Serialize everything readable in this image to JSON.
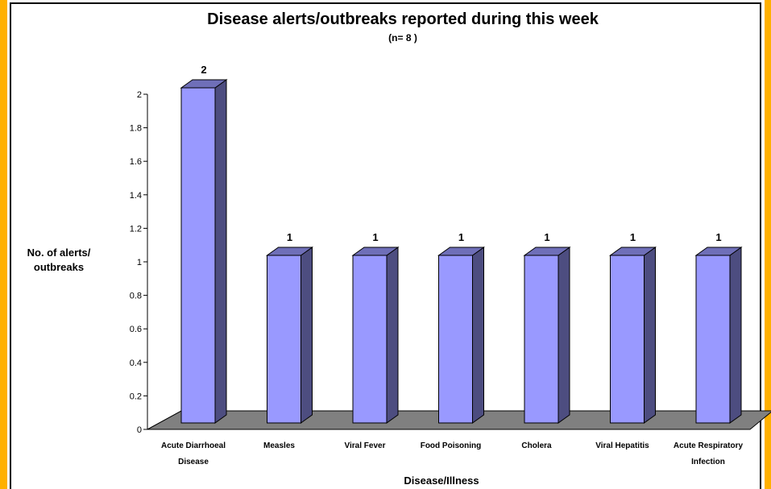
{
  "chart_data": {
    "type": "bar",
    "title": "Disease alerts/outbreaks reported during this week",
    "subtitle": "(n= 8 )",
    "xlabel": "Disease/Illness",
    "ylabel_lines": [
      "No. of alerts/",
      "outbreaks"
    ],
    "categories": [
      [
        "Acute Diarrhoeal",
        "Disease"
      ],
      [
        "Measles"
      ],
      [
        "Viral Fever"
      ],
      [
        "Food Poisoning"
      ],
      [
        "Cholera"
      ],
      [
        "Viral Hepatitis"
      ],
      [
        "Acute Respiratory",
        "Infection"
      ]
    ],
    "values": [
      2,
      1,
      1,
      1,
      1,
      1,
      1
    ],
    "data_labels": [
      "2",
      "1",
      "1",
      "1",
      "1",
      "1",
      "1"
    ],
    "ylim": [
      0,
      2
    ],
    "yticks": [
      "0",
      "0.2",
      "0.4",
      "0.6",
      "0.8",
      "1",
      "1.2",
      "1.4",
      "1.6",
      "1.8",
      "2"
    ],
    "grid": false,
    "legend": "none",
    "colors": {
      "bar_front": "#9999ff",
      "bar_side": "#4d4d80",
      "bar_top": "#6f6fb8",
      "floor": "#808080",
      "accent_border": "#ffb000"
    }
  }
}
